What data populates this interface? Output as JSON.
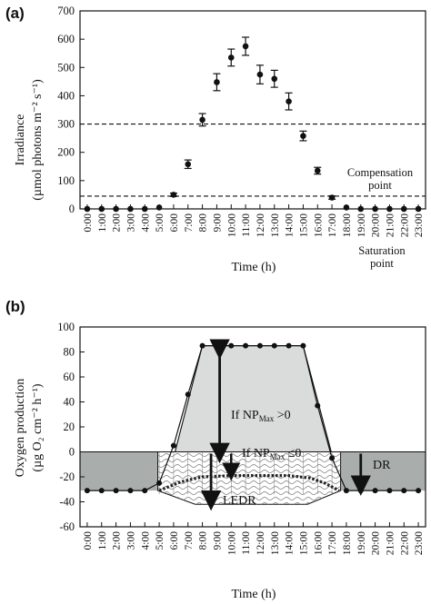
{
  "chart_data": [
    {
      "panel": "(a)",
      "type": "scatter",
      "xlabel": "Time (h)",
      "ylabel_line1": "Irradiance",
      "ylabel_line2": "(µmol photons m⁻² s⁻¹)",
      "ylim": [
        0,
        700
      ],
      "yticks": [
        0,
        100,
        200,
        300,
        400,
        500,
        600,
        700
      ],
      "x_tick_labels": [
        "0:00",
        "1:00",
        "2:00",
        "3:00",
        "4:00",
        "5:00",
        "6:00",
        "7:00",
        "8:00",
        "9:00",
        "10:00",
        "11:00",
        "12:00",
        "13:00",
        "14:00",
        "15:00",
        "16:00",
        "17:00",
        "18:00",
        "19:00",
        "20:00",
        "21:00",
        "22:00",
        "23:00"
      ],
      "series": [
        {
          "values": [
            0,
            0,
            0,
            0,
            0,
            5,
            50,
            158,
            315,
            448,
            535,
            575,
            475,
            460,
            380,
            258,
            135,
            40,
            5,
            0,
            0,
            0,
            0,
            0
          ],
          "errors": [
            0,
            0,
            0,
            0,
            0,
            0,
            6,
            15,
            22,
            30,
            30,
            32,
            33,
            30,
            30,
            17,
            12,
            6,
            0,
            0,
            0,
            0,
            0,
            0
          ]
        }
      ],
      "reference_lines": [
        {
          "y": 300,
          "label_line1": "Saturation",
          "label_line2": "point",
          "style": "dashed"
        },
        {
          "y": 45,
          "label_line1": "Compensation",
          "label_line2": "point",
          "style": "dashed"
        }
      ],
      "grid": false
    },
    {
      "panel": "(b)",
      "type": "line",
      "xlabel": "Time (h)",
      "ylabel_line1": "Oxygen production",
      "ylabel_line2": "(µg O₂ cm⁻² h⁻¹)",
      "ylim": [
        -60,
        100
      ],
      "yticks": [
        -60,
        -40,
        -20,
        0,
        20,
        40,
        60,
        80,
        100
      ],
      "x_tick_labels": [
        "0:00",
        "1:00",
        "2:00",
        "3:00",
        "4:00",
        "5:00",
        "6:00",
        "7:00",
        "8:00",
        "9:00",
        "10:00",
        "11:00",
        "12:00",
        "13:00",
        "14:00",
        "15:00",
        "16:00",
        "17:00",
        "18:00",
        "19:00",
        "20:00",
        "21:00",
        "22:00",
        "23:00"
      ],
      "series": [
        {
          "values": [
            -31,
            -31,
            -31,
            -31,
            -31,
            -25,
            5,
            46,
            85,
            85,
            85,
            85,
            85,
            85,
            85,
            85,
            37,
            -5,
            -31,
            -31,
            -31,
            -31,
            -31,
            -31
          ]
        }
      ],
      "annotations": {
        "np_positive": {
          "prefix": "If NP",
          "sub": "Max",
          "suffix": " >0"
        },
        "np_negative": {
          "prefix": "If NP",
          "sub": "Max",
          "suffix": " ≤0"
        },
        "ledr": "LEDR",
        "dr": "DR"
      },
      "grid": false
    }
  ]
}
